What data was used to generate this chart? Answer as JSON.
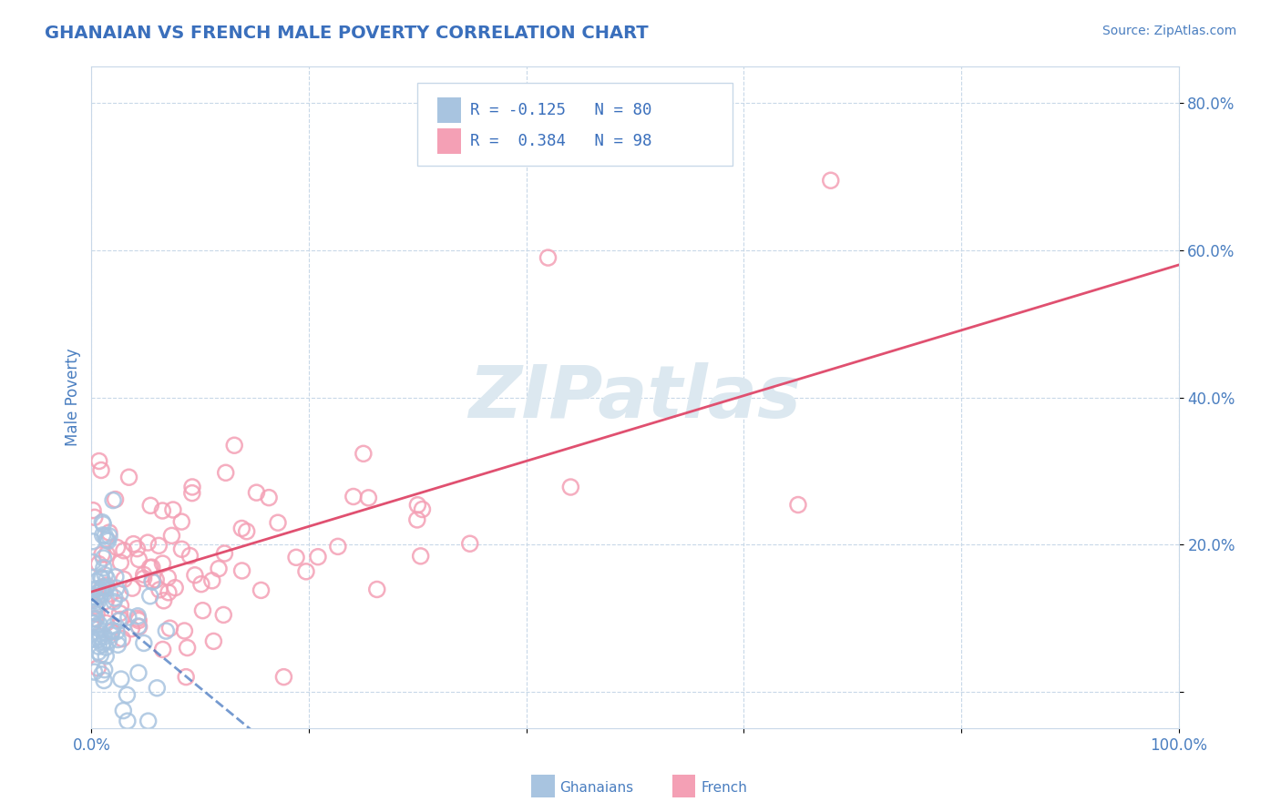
{
  "title": "GHANAIAN VS FRENCH MALE POVERTY CORRELATION CHART",
  "source": "Source: ZipAtlas.com",
  "ylabel": "Male Poverty",
  "ghanaian_R": -0.125,
  "ghanaian_N": 80,
  "french_R": 0.384,
  "french_N": 98,
  "ghanaian_color": "#a8c4e0",
  "french_color": "#f4a0b5",
  "ghanaian_line_color": "#3a6fbc",
  "french_line_color": "#e05070",
  "background_color": "#ffffff",
  "grid_color": "#c8d8e8",
  "title_color": "#3a6fbc",
  "axis_label_color": "#4a7ec0",
  "legend_text_color": "#3a6fbc",
  "watermark_color": "#dce8f0",
  "xlim": [
    0,
    1.0
  ],
  "ylim": [
    -0.05,
    0.85
  ],
  "y_ticks": [
    0.0,
    0.2,
    0.4,
    0.6,
    0.8
  ],
  "y_tick_labels_right": [
    "",
    "20.0%",
    "40.0%",
    "60.0%",
    "80.0%"
  ],
  "x_tick_labels": [
    "0.0%",
    "",
    "",
    "",
    "",
    "100.0%"
  ]
}
